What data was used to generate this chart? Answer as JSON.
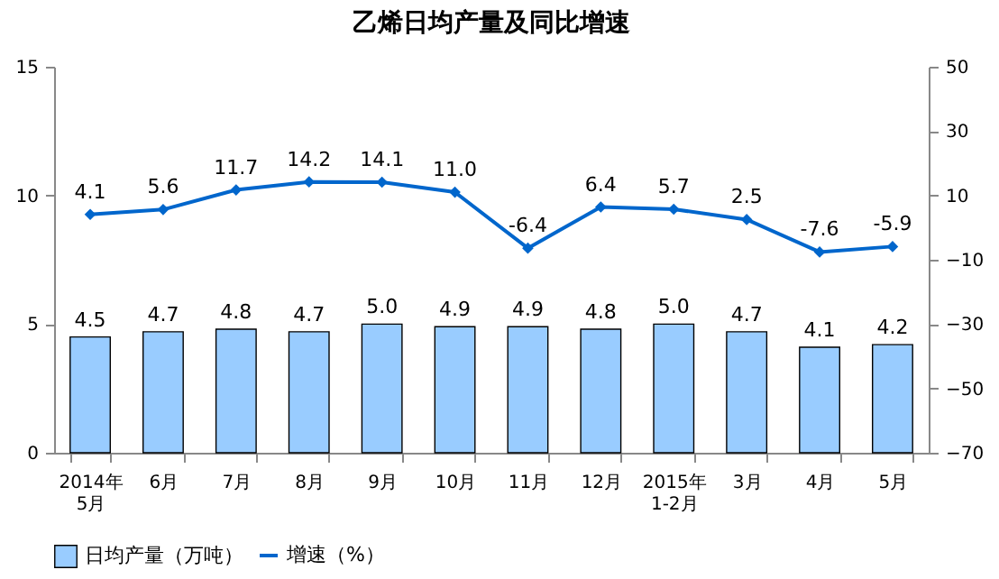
{
  "chart_data": {
    "type": "bar",
    "title": "乙烯日均产量及同比增速",
    "categories": [
      "2014年\n5月",
      "6月",
      "7月",
      "8月",
      "9月",
      "10月",
      "11月",
      "12月",
      "2015年\n1-2月",
      "3月",
      "4月",
      "5月"
    ],
    "series": [
      {
        "name": "日均产量（万吨）",
        "color": "#99ccff",
        "values": [
          4.5,
          4.7,
          4.8,
          4.7,
          5.0,
          4.9,
          4.9,
          4.8,
          5.0,
          4.7,
          4.1,
          4.2
        ],
        "value_labels": [
          "4.5",
          "4.7",
          "4.8",
          "4.7",
          "5.0",
          "4.9",
          "4.9",
          "4.8",
          "5.0",
          "4.7",
          "4.1",
          "4.2"
        ]
      },
      {
        "name": "增速（%）",
        "type": "line",
        "axis": "y2",
        "color": "#0066cc",
        "values": [
          4.1,
          5.6,
          11.7,
          14.2,
          14.1,
          11.0,
          -6.4,
          6.4,
          5.7,
          2.5,
          -7.6,
          -5.9
        ],
        "value_labels": [
          "4.1",
          "5.6",
          "11.7",
          "14.2",
          "14.1",
          "11.0",
          "-6.4",
          "6.4",
          "5.7",
          "2.5",
          "-7.6",
          "-5.9"
        ]
      }
    ],
    "ylim": [
      0,
      15
    ],
    "yticks": [
      0,
      5,
      10,
      15
    ],
    "y2lim": [
      -70,
      50
    ],
    "y2ticks": [
      -70,
      -50,
      -30,
      -10,
      10,
      30,
      50
    ],
    "grid": false,
    "legend": "bottom",
    "marker": "diamond",
    "line_style": "solid"
  }
}
